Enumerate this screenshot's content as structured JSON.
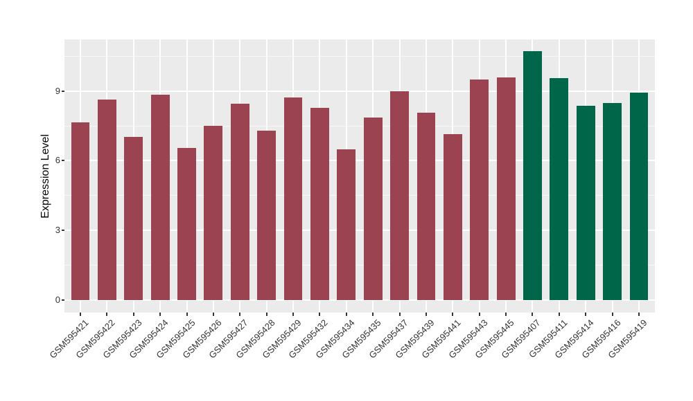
{
  "chart_data": {
    "type": "bar",
    "title": "",
    "xlabel": "",
    "ylabel": "Expression Level",
    "yticks": [
      0,
      3,
      6,
      9
    ],
    "y_minor_gridlines": [
      1.5,
      4.5,
      7.5,
      10.5
    ],
    "ylim": [
      0,
      11.22
    ],
    "grid": "on",
    "legend": "none",
    "categories": [
      "GSM595421",
      "GSM595422",
      "GSM595423",
      "GSM595424",
      "GSM595425",
      "GSM595426",
      "GSM595427",
      "GSM595428",
      "GSM595429",
      "GSM595432",
      "GSM595434",
      "GSM595435",
      "GSM595437",
      "GSM595439",
      "GSM595441",
      "GSM595443",
      "GSM595445",
      "GSM595407",
      "GSM595411",
      "GSM595414",
      "GSM595416",
      "GSM595419"
    ],
    "values": [
      7.66,
      8.62,
      7.04,
      8.85,
      6.54,
      7.49,
      8.46,
      7.3,
      8.73,
      8.29,
      6.49,
      7.85,
      8.98,
      8.07,
      7.14,
      9.5,
      9.6,
      10.71,
      9.57,
      8.36,
      8.49,
      8.93
    ],
    "groups": [
      "maroon",
      "maroon",
      "maroon",
      "maroon",
      "maroon",
      "maroon",
      "maroon",
      "maroon",
      "maroon",
      "maroon",
      "maroon",
      "maroon",
      "maroon",
      "maroon",
      "maroon",
      "maroon",
      "maroon",
      "green",
      "green",
      "green",
      "green",
      "green"
    ],
    "palette": {
      "maroon": "#9C4351",
      "green": "#006649"
    },
    "colors": {
      "panel_background": "#EBEBEB",
      "gridline": "#FFFFFF",
      "axis_text": "#333333",
      "axis_title": "#000000",
      "tick_mark": "#333333",
      "page_background": "#FFFFFF"
    }
  }
}
